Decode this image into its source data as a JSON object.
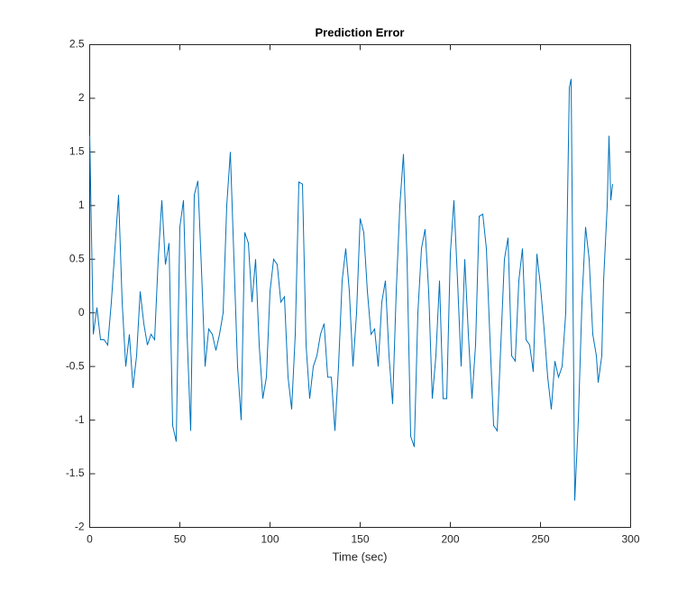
{
  "chart_data": {
    "type": "line",
    "title": "Prediction Error",
    "xlabel": "Time (sec)",
    "x": [
      0,
      2,
      4,
      6,
      8,
      10,
      12,
      14,
      16,
      18,
      20,
      22,
      24,
      26,
      28,
      30,
      32,
      34,
      36,
      38,
      40,
      42,
      44,
      46,
      48,
      50,
      52,
      54,
      56,
      58,
      60,
      62,
      64,
      66,
      68,
      70,
      72,
      74,
      76,
      78,
      80,
      82,
      84,
      86,
      88,
      90,
      92,
      94,
      96,
      98,
      100,
      102,
      104,
      106,
      108,
      110,
      112,
      114,
      116,
      118,
      120,
      122,
      124,
      126,
      128,
      130,
      132,
      134,
      136,
      138,
      140,
      142,
      144,
      146,
      148,
      150,
      152,
      154,
      156,
      158,
      160,
      162,
      164,
      166,
      168,
      170,
      172,
      174,
      176,
      178,
      180,
      182,
      184,
      186,
      188,
      190,
      192,
      194,
      196,
      198,
      200,
      202,
      204,
      206,
      208,
      210,
      212,
      214,
      216,
      218,
      220,
      222,
      224,
      226,
      228,
      230,
      232,
      234,
      236,
      238,
      240,
      242,
      244,
      246,
      248,
      250,
      252,
      254,
      256,
      258,
      260,
      262,
      264,
      266,
      267,
      269,
      271,
      273,
      275,
      277,
      279,
      281,
      282,
      284,
      285,
      287,
      288,
      289,
      290
    ],
    "series": [
      {
        "color": "#0072bd",
        "values": [
          1.65,
          -0.2,
          0.05,
          -0.25,
          -0.25,
          -0.3,
          0.1,
          0.6,
          1.1,
          0.1,
          -0.5,
          -0.2,
          -0.7,
          -0.4,
          0.2,
          -0.1,
          -0.3,
          -0.2,
          -0.25,
          0.5,
          1.05,
          0.45,
          0.65,
          -1.05,
          -1.2,
          0.8,
          1.05,
          -0.2,
          -1.1,
          1.1,
          1.23,
          0.4,
          -0.5,
          -0.15,
          -0.2,
          -0.35,
          -0.2,
          0.0,
          1.0,
          1.5,
          0.5,
          -0.5,
          -1.0,
          0.75,
          0.65,
          0.1,
          0.5,
          -0.3,
          -0.8,
          -0.6,
          0.2,
          0.5,
          0.45,
          0.1,
          0.15,
          -0.6,
          -0.9,
          -0.2,
          1.22,
          1.2,
          -0.3,
          -0.8,
          -0.5,
          -0.4,
          -0.2,
          -0.1,
          -0.6,
          -0.6,
          -1.1,
          -0.5,
          0.3,
          0.6,
          0.2,
          -0.5,
          0.0,
          0.88,
          0.75,
          0.2,
          -0.2,
          -0.15,
          -0.5,
          0.1,
          0.3,
          -0.4,
          -0.85,
          0.2,
          1.0,
          1.48,
          0.5,
          -1.15,
          -1.25,
          0.0,
          0.6,
          0.78,
          0.2,
          -0.8,
          -0.4,
          0.3,
          -0.8,
          -0.8,
          0.55,
          1.05,
          0.3,
          -0.5,
          0.5,
          -0.2,
          -0.8,
          -0.3,
          0.9,
          0.92,
          0.6,
          -0.25,
          -1.05,
          -1.1,
          -0.3,
          0.5,
          0.7,
          -0.4,
          -0.45,
          0.3,
          0.6,
          -0.25,
          -0.3,
          -0.55,
          0.55,
          0.25,
          -0.15,
          -0.6,
          -0.9,
          -0.45,
          -0.6,
          -0.5,
          0.0,
          2.1,
          2.18,
          -1.75,
          -1.0,
          0.1,
          0.8,
          0.5,
          -0.2,
          -0.4,
          -0.65,
          -0.4,
          0.3,
          1.0,
          1.65,
          1.05,
          1.2
        ]
      }
    ],
    "xlim": [
      0,
      300
    ],
    "xticks": [
      0,
      50,
      100,
      150,
      200,
      250,
      300
    ],
    "ylim": [
      -2,
      2.5
    ],
    "yticks": [
      -2,
      -1.5,
      -1,
      -0.5,
      0,
      0.5,
      1,
      1.5,
      2,
      2.5
    ]
  }
}
